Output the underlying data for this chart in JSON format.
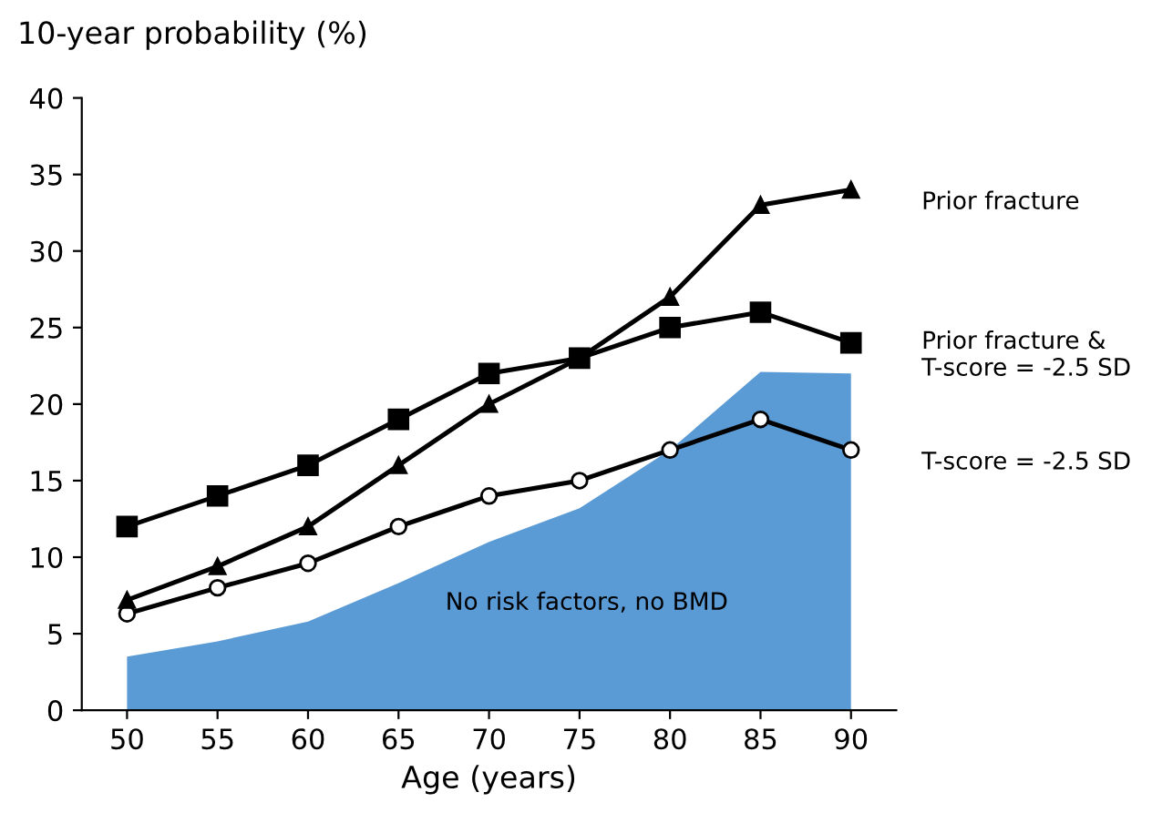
{
  "chart_data": {
    "type": "line",
    "ylabel": "10-year probability (%)",
    "xlabel": "Age (years)",
    "x": [
      50,
      55,
      60,
      65,
      70,
      75,
      80,
      85,
      90
    ],
    "series": [
      {
        "name": "No risk factors, no BMD",
        "type": "area",
        "color": "#5b9bd5",
        "values": [
          3.5,
          4.5,
          5.8,
          8.3,
          11,
          13.2,
          17,
          22.1,
          22
        ]
      },
      {
        "name": "T-score = -2.5 SD",
        "color": "#000000",
        "marker": "circle",
        "values": [
          6.3,
          8,
          9.6,
          12,
          14,
          15,
          17,
          19,
          17
        ]
      },
      {
        "name": "Prior fracture & T-score = -2.5 SD",
        "color": "#000000",
        "marker": "square",
        "values": [
          12,
          14,
          16,
          19,
          22,
          23,
          25,
          26,
          24
        ]
      },
      {
        "name": "Prior fracture",
        "color": "#000000",
        "marker": "triangle",
        "values": [
          7.2,
          9.4,
          12,
          16,
          20,
          23,
          27,
          33,
          34
        ]
      }
    ],
    "xlim": [
      47.5,
      92.5
    ],
    "xticks": [
      50,
      55,
      60,
      65,
      70,
      75,
      80,
      85,
      90
    ],
    "ylim": [
      0,
      40
    ],
    "yticks": [
      0,
      5,
      10,
      15,
      20,
      25,
      30,
      35,
      40
    ],
    "grid": false,
    "line_style": "solid"
  }
}
